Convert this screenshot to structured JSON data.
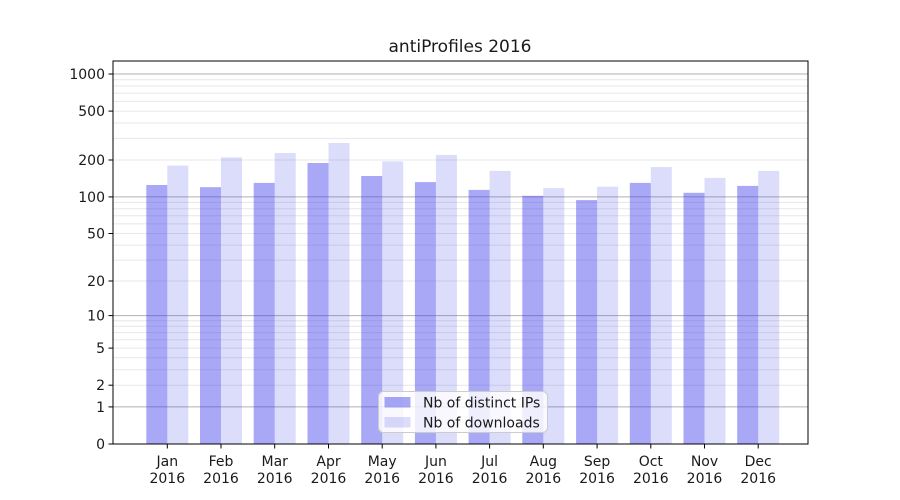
{
  "chart_data": {
    "type": "bar",
    "title": "antiProfiles 2016",
    "x_months": [
      "Jan",
      "Feb",
      "Mar",
      "Apr",
      "May",
      "Jun",
      "Jul",
      "Aug",
      "Sep",
      "Oct",
      "Nov",
      "Dec"
    ],
    "x_year": "2016",
    "categories": [
      "Jan 2016",
      "Feb 2016",
      "Mar 2016",
      "Apr 2016",
      "May 2016",
      "Jun 2016",
      "Jul 2016",
      "Aug 2016",
      "Sep 2016",
      "Oct 2016",
      "Nov 2016",
      "Dec 2016"
    ],
    "series": [
      {
        "name": "Nb of distinct IPs",
        "color": "rgba(62,62,235,0.45)",
        "values": [
          125,
          120,
          130,
          189,
          148,
          132,
          114,
          102,
          94,
          130,
          108,
          123
        ]
      },
      {
        "name": "Nb of downloads",
        "color": "rgba(62,62,235,0.18)",
        "values": [
          180,
          210,
          228,
          275,
          195,
          220,
          163,
          118,
          121,
          175,
          143,
          163
        ]
      }
    ],
    "yscale": "log1p",
    "ylim": [
      0,
      1276
    ],
    "yticks": [
      0,
      1,
      2,
      5,
      10,
      20,
      50,
      100,
      200,
      500,
      1000
    ],
    "ytick_major": [
      1,
      10,
      100,
      1000
    ],
    "grid": true,
    "legend_position": "lower center"
  },
  "colors": {
    "grid_major": "#b0b0b0",
    "grid_minor": "#e7e7e7",
    "axis": "#000000",
    "text": "#1a1a1a",
    "legend_bg": "rgba(255,255,255,0.8)",
    "legend_border": "#cccccc",
    "background": "#ffffff"
  }
}
